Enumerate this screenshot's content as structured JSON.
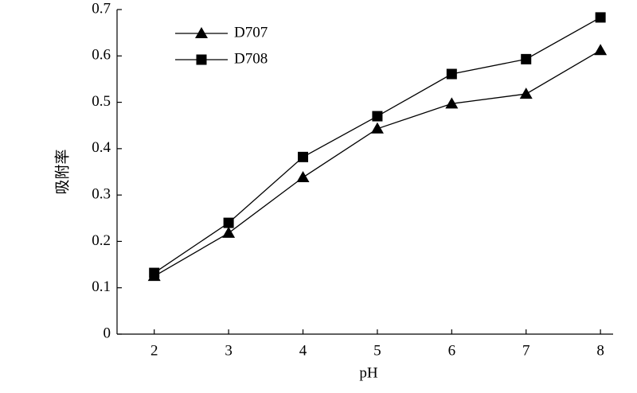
{
  "chart_data": {
    "type": "line",
    "x_label": "pH",
    "y_label": "吸附率",
    "x": [
      2,
      3,
      4,
      5,
      6,
      7,
      8
    ],
    "series": [
      {
        "name": "D707",
        "color": "#000000",
        "marker": "triangle",
        "values": [
          0.125,
          0.218,
          0.338,
          0.443,
          0.497,
          0.518,
          0.612
        ]
      },
      {
        "name": "D708",
        "color": "#000000",
        "marker": "square",
        "values": [
          0.132,
          0.24,
          0.382,
          0.47,
          0.561,
          0.593,
          0.683
        ]
      }
    ],
    "xlim": [
      1.5,
      8.17
    ],
    "xticks": [
      2,
      3,
      4,
      5,
      6,
      7,
      8
    ],
    "ylim": [
      0,
      0.7
    ],
    "yticks": [
      0,
      0.1,
      0.2,
      0.3,
      0.4,
      0.5,
      0.6,
      0.7
    ],
    "legend": "upper left"
  }
}
